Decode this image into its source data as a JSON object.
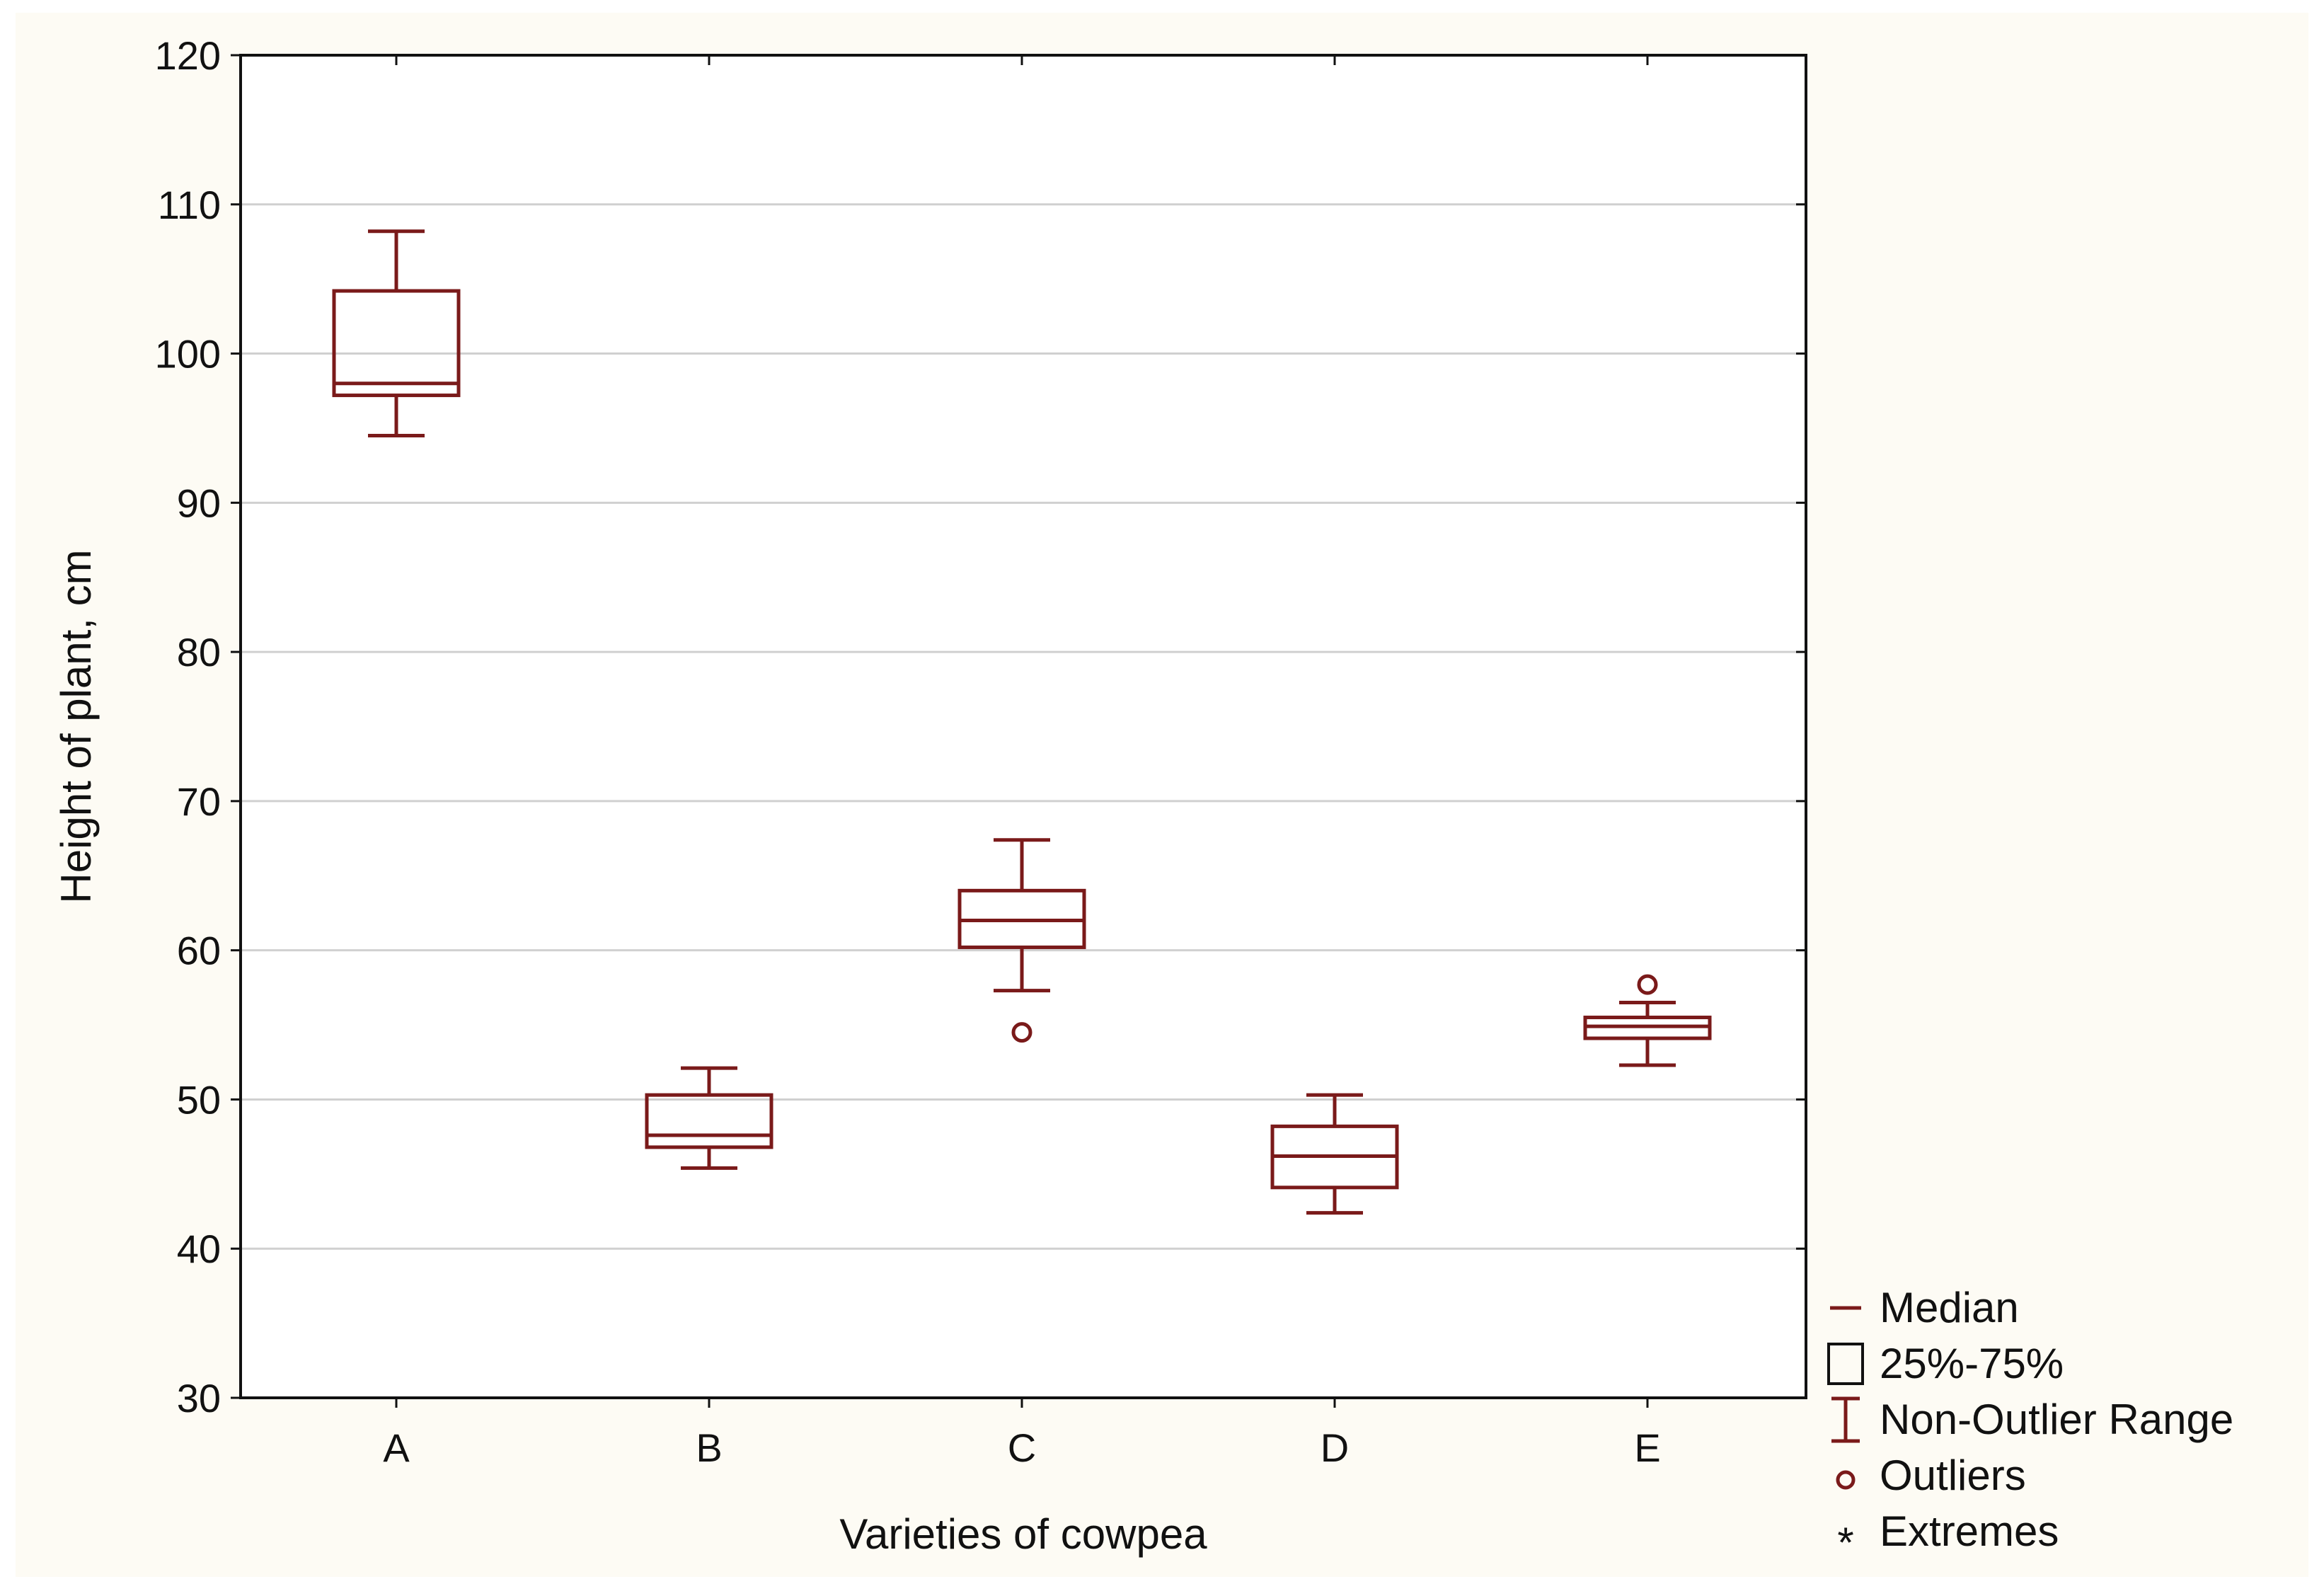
{
  "chart_data": {
    "type": "boxplot",
    "title": "",
    "xlabel": "Varieties of cowpea",
    "ylabel": "Height of plant, cm",
    "ylim": [
      30,
      120
    ],
    "yticks": [
      30,
      40,
      50,
      60,
      70,
      80,
      90,
      100,
      110,
      120
    ],
    "grid": true,
    "categories": [
      "A",
      "B",
      "C",
      "D",
      "E"
    ],
    "boxes": [
      {
        "category": "A",
        "whisker_low": 94.5,
        "q1": 97.2,
        "median": 98.0,
        "q3": 104.2,
        "whisker_high": 108.2,
        "outliers": []
      },
      {
        "category": "B",
        "whisker_low": 45.4,
        "q1": 46.8,
        "median": 47.6,
        "q3": 50.3,
        "whisker_high": 52.1,
        "outliers": []
      },
      {
        "category": "C",
        "whisker_low": 57.3,
        "q1": 60.2,
        "median": 62.0,
        "q3": 64.0,
        "whisker_high": 67.4,
        "outliers": [
          54.5
        ]
      },
      {
        "category": "D",
        "whisker_low": 42.4,
        "q1": 44.1,
        "median": 46.2,
        "q3": 48.2,
        "whisker_high": 50.3,
        "outliers": []
      },
      {
        "category": "E",
        "whisker_low": 52.3,
        "q1": 54.1,
        "median": 54.9,
        "q3": 55.5,
        "whisker_high": 56.5,
        "outliers": [
          57.7
        ]
      }
    ],
    "legend": {
      "position": "bottom-right",
      "entries": [
        {
          "symbol": "median-line",
          "label": "Median"
        },
        {
          "symbol": "box",
          "label": "25%-75%"
        },
        {
          "symbol": "whisker",
          "label": "Non-Outlier Range"
        },
        {
          "symbol": "circle",
          "label": "Outliers"
        },
        {
          "symbol": "asterisk",
          "label": "Extremes"
        }
      ]
    },
    "colors": {
      "box": "#7a1a1a",
      "grid": "#d0d0d0",
      "axis": "#111111",
      "background": "#fdfbf4",
      "plot_background": "#ffffff"
    }
  }
}
